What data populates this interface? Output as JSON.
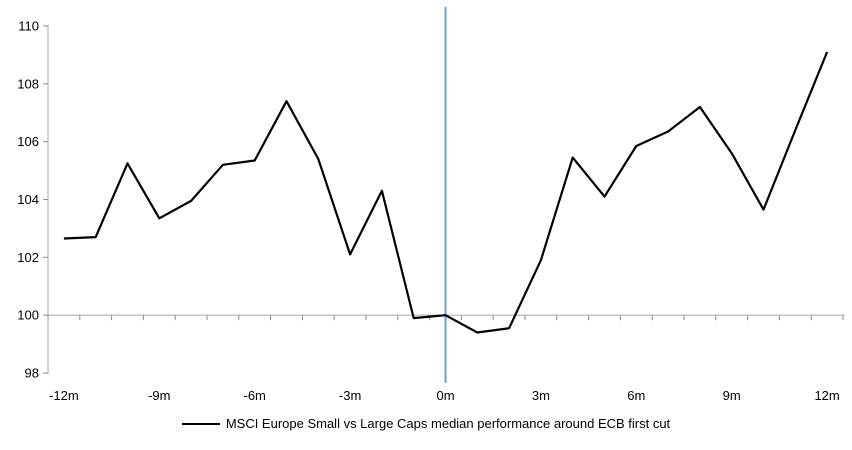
{
  "chart_data": {
    "type": "line",
    "title": "",
    "x": [
      -12,
      -11,
      -10,
      -9,
      -8,
      -7,
      -6,
      -5,
      -4,
      -3,
      -2,
      -1,
      0,
      1,
      2,
      3,
      4,
      5,
      6,
      7,
      8,
      9,
      10,
      11,
      12
    ],
    "series": [
      {
        "name": "MSCI Europe Small vs Large Caps median performance around ECB first cut",
        "color": "#000000",
        "values": [
          102.65,
          102.7,
          105.25,
          103.35,
          103.95,
          105.2,
          105.35,
          107.4,
          105.4,
          102.1,
          104.3,
          99.9,
          100.0,
          99.4,
          99.55,
          101.9,
          105.45,
          104.1,
          105.85,
          106.35,
          107.2,
          105.6,
          103.65,
          106.4,
          109.1
        ]
      }
    ],
    "x_tick_labels": [
      "-12m",
      "-9m",
      "-6m",
      "-3m",
      "0m",
      "3m",
      "6m",
      "9m",
      "12m"
    ],
    "x_tick_months": [
      -12,
      -9,
      -6,
      -3,
      0,
      3,
      6,
      9,
      12
    ],
    "y_ticks": [
      98,
      100,
      102,
      104,
      106,
      108,
      110
    ],
    "ylim": [
      98,
      110
    ],
    "xlabel": "",
    "ylabel": "",
    "grid": false,
    "category_axis_value": 100,
    "event_line": {
      "x": 0,
      "color": "#74A5D8"
    },
    "colors": {
      "axis": "#A6A6A6",
      "tick": "#8C8C8C",
      "text": "#000000",
      "series": "#000000"
    },
    "legend_position": "bottom"
  }
}
